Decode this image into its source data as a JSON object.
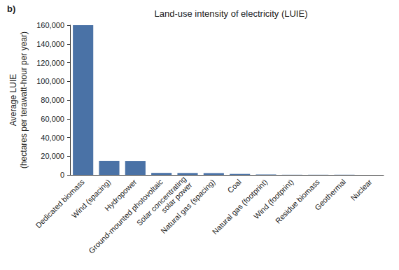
{
  "chart_data": {
    "type": "bar",
    "title": "Land-use intensity of electricity (LUIE)",
    "annotations": [
      "b)"
    ],
    "y_label": "Average LUIE\n(hectares per terawatt-hour per year)",
    "categories": [
      "Dedicated biomass",
      "Wind (spacing)",
      "Hydropower",
      "Ground-mounted photovoltaic",
      "Solar concentrating\nsolar power",
      "Natural gas (spacing)",
      "Coal",
      "Natural gas (footprint)",
      "Wind (footprint)",
      "Residue biomass",
      "Geothermal",
      "Nuclear"
    ],
    "values": [
      160000,
      15000,
      14900,
      2100,
      2000,
      1900,
      1000,
      400,
      130,
      130,
      150,
      7
    ],
    "color": "#4a72a6",
    "ylim": [
      0,
      160000
    ],
    "yticks": [
      0,
      {
        "value": 20000,
        "label": "20,000"
      },
      {
        "value": 40000,
        "label": "40,000"
      },
      {
        "value": 60000,
        "label": "60,000"
      },
      {
        "value": 80000,
        "label": "80,000"
      },
      {
        "value": 100000,
        "label": "100,000"
      },
      {
        "value": 120000,
        "label": "120,000"
      },
      {
        "value": 140000,
        "label": "140,000"
      },
      {
        "value": 160000,
        "label": "160,000"
      }
    ],
    "grid": false
  }
}
